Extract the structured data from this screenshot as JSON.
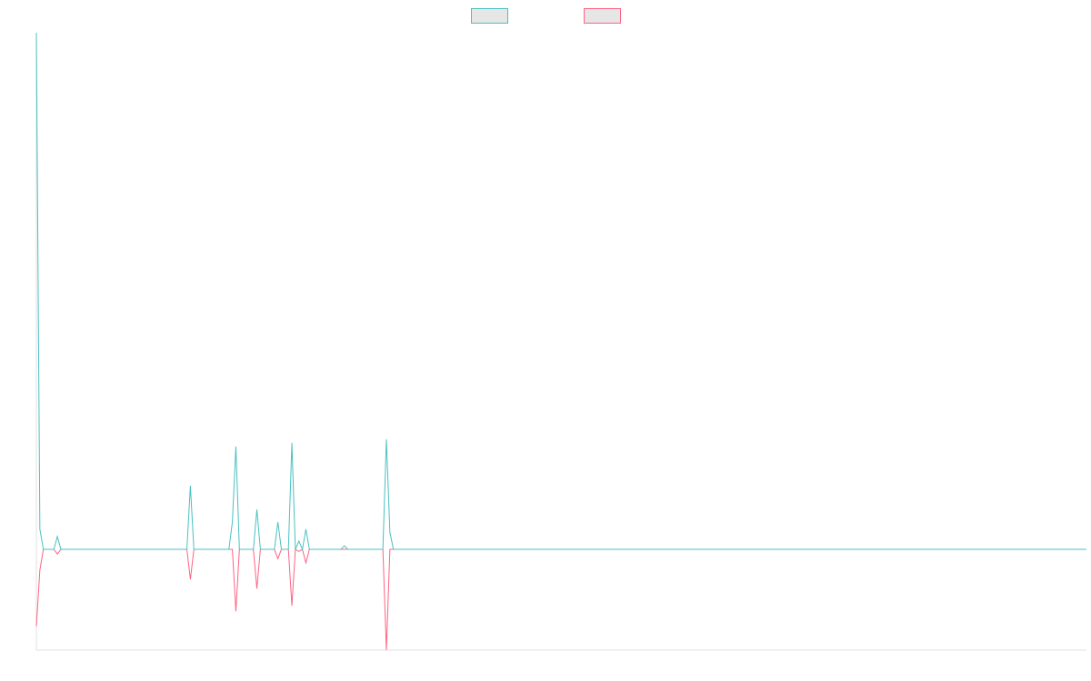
{
  "chart_data": {
    "type": "line",
    "x": [
      0,
      1,
      2,
      5,
      6,
      7,
      43,
      44,
      45,
      55,
      56,
      57,
      58,
      62,
      63,
      64,
      68,
      69,
      70,
      72,
      73,
      74,
      75,
      76,
      77,
      78,
      87,
      88,
      89,
      99,
      100,
      101,
      102,
      300
    ],
    "series": [
      {
        "color": "#ff6384",
        "values": [
          -14.9,
          -4,
          0,
          0,
          -0.9,
          0,
          0,
          -5.8,
          0,
          0,
          0,
          -12,
          0,
          0,
          -7.6,
          0,
          0,
          -1.8,
          0,
          0,
          -10.9,
          0,
          -0.4,
          0,
          -2.6,
          0,
          0,
          0,
          0,
          0,
          -19.5,
          0,
          0,
          0
        ]
      },
      {
        "color": "#4bc0c0",
        "values": [
          100,
          3.9,
          0,
          0,
          2.5,
          0,
          0,
          12.3,
          0,
          0,
          5.3,
          19.9,
          0,
          0,
          7.7,
          0,
          0,
          5.3,
          0,
          0,
          20.6,
          0,
          1.6,
          0,
          3.9,
          0,
          0,
          0.7,
          0,
          0,
          21.3,
          3.3,
          0,
          0
        ]
      }
    ],
    "legend_order": [
      1,
      0
    ],
    "xlim": [
      0,
      300
    ],
    "ylim": [
      -19.5,
      100
    ],
    "grid": false,
    "legend": "top"
  }
}
